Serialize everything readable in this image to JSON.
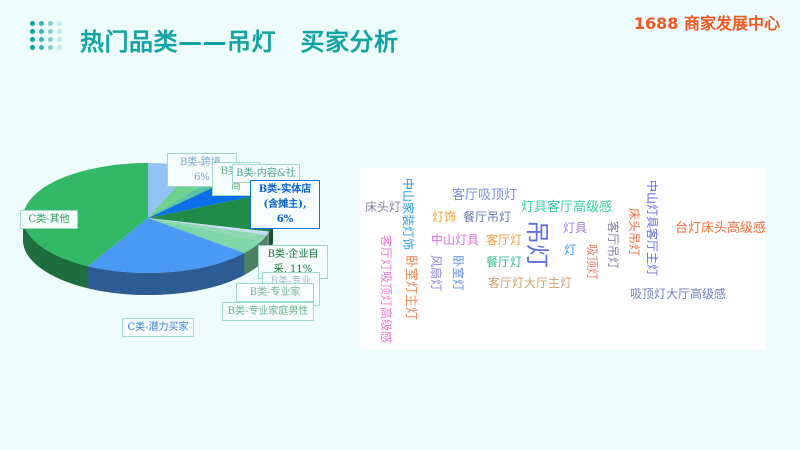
{
  "header": {
    "title": "热门品类——吊灯　买家分析",
    "brand": "1688 商家发展中心",
    "accent": "#12a3a3",
    "brand_color": "#f05a22"
  },
  "chart_data": {
    "type": "pie",
    "style": "3d",
    "unit": "%",
    "slices": [
      {
        "label": "B类-跨境, 6%",
        "shown": "B类-跨境, 6%",
        "value": 6,
        "color": "#93c2f5"
      },
      {
        "label": "B类-商…",
        "shown": "B类-…商",
        "value": 4,
        "color": "#6fd08f"
      },
      {
        "label": "B类-内容&社…",
        "shown": "B类-内容&社",
        "value": 2,
        "color": "#5cc2a0"
      },
      {
        "label": "B类-实体店(含摊主), 6%",
        "shown": "B类-实体店(含摊主), 6%",
        "value": 6,
        "color": "#0a6fe8"
      },
      {
        "label": "B类-企业自采, 11%",
        "shown": "B类-企业自采, 11%",
        "value": 11,
        "color": "#228b4a"
      },
      {
        "label": "B类-专业年…",
        "shown": "B类-专业年",
        "value": 1,
        "color": "#c9dcf7"
      },
      {
        "label": "B类-专业家…",
        "shown": "B类-专业家",
        "value": 2,
        "color": "#8fd8b3"
      },
      {
        "label": "B类-专业家庭男性",
        "shown": "B类-专业家庭男性",
        "value": 4,
        "color": "#7fd6a6"
      },
      {
        "label": "C类-潜力买家",
        "shown": "C类-潜力买家",
        "value": 22,
        "color": "#4a9af5"
      },
      {
        "label": "C类-其他",
        "shown": "C类-其他",
        "value": 42,
        "color": "#33b866"
      }
    ]
  },
  "wordcloud": {
    "words": [
      {
        "text": "床头灯",
        "color": "#8a7fa0"
      },
      {
        "text": "中山家装灯饰",
        "color": "#2a9ee0"
      },
      {
        "text": "客厅灯吸顶灯高级感",
        "color": "#f07ad8"
      },
      {
        "text": "卧室灯主灯",
        "color": "#f08a5a"
      },
      {
        "text": "客厅吸顶灯",
        "color": "#7a8fe0"
      },
      {
        "text": "灯具客厅高级感",
        "color": "#3ccfa0"
      },
      {
        "text": "灯饰",
        "color": "#f0a030"
      },
      {
        "text": "餐厅吊灯",
        "color": "#6a7ab0"
      },
      {
        "text": "中山灯具",
        "color": "#e070e0"
      },
      {
        "text": "客厅灯",
        "color": "#f0a040"
      },
      {
        "text": "吊灯",
        "color": "#6070e0"
      },
      {
        "text": "灯具",
        "color": "#a080e0"
      },
      {
        "text": "灯",
        "color": "#30a0f0"
      },
      {
        "text": "风扇灯",
        "color": "#9080e0"
      },
      {
        "text": "卧室灯",
        "color": "#6090e0"
      },
      {
        "text": "餐厅灯",
        "color": "#30c090"
      },
      {
        "text": "吸顶灯",
        "color": "#f08060"
      },
      {
        "text": "客厅吊灯",
        "color": "#8080a0"
      },
      {
        "text": "床头吊灯",
        "color": "#f07040"
      },
      {
        "text": "中山灯具客厅主灯",
        "color": "#6070e0"
      },
      {
        "text": "台灯床头高级感",
        "color": "#f07040"
      },
      {
        "text": "客厅灯大厅主灯",
        "color": "#d0a070"
      },
      {
        "text": "吸顶灯大厅高级感",
        "color": "#7080c0"
      }
    ]
  }
}
